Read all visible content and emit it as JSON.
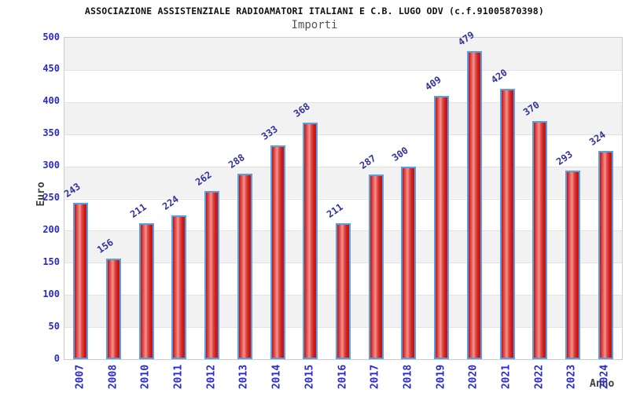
{
  "header": {
    "title": "ASSOCIAZIONE ASSISTENZIALE RADIOAMATORI ITALIANI E C.B. LUGO ODV (c.f.91005870398)",
    "subtitle": "Importi"
  },
  "chart_data": {
    "type": "bar",
    "title": "ASSOCIAZIONE ASSISTENZIALE RADIOAMATORI ITALIANI E C.B. LUGO ODV (c.f.91005870398)",
    "subtitle": "Importi",
    "categories": [
      "2007",
      "2008",
      "2010",
      "2011",
      "2012",
      "2013",
      "2014",
      "2015",
      "2016",
      "2017",
      "2018",
      "2019",
      "2020",
      "2021",
      "2022",
      "2023",
      "2024"
    ],
    "values": [
      243,
      156,
      211,
      224,
      262,
      288,
      333,
      368,
      211,
      287,
      300,
      409,
      479,
      420,
      370,
      293,
      324
    ],
    "xlabel": "Anno",
    "ylabel": "Euro",
    "ylim": [
      0,
      500
    ],
    "y_ticks": [
      0,
      50,
      100,
      150,
      200,
      250,
      300,
      350,
      400,
      450,
      500
    ],
    "grid": "horizontal alternating bands every 50 units",
    "legend": "none",
    "colors": {
      "bar_fill_dark": "#c41317",
      "bar_fill_highlight": "#f2918b",
      "bar_border": "#58a0e0",
      "tick_label": "#2a2acc",
      "value_label": "#333399",
      "band_gray": "#f2f2f2",
      "band_white": "#ffffff",
      "plot_border": "#cccccc",
      "axis_title": "#3c3c3c",
      "title": "#111111",
      "subtitle": "#555555"
    }
  }
}
